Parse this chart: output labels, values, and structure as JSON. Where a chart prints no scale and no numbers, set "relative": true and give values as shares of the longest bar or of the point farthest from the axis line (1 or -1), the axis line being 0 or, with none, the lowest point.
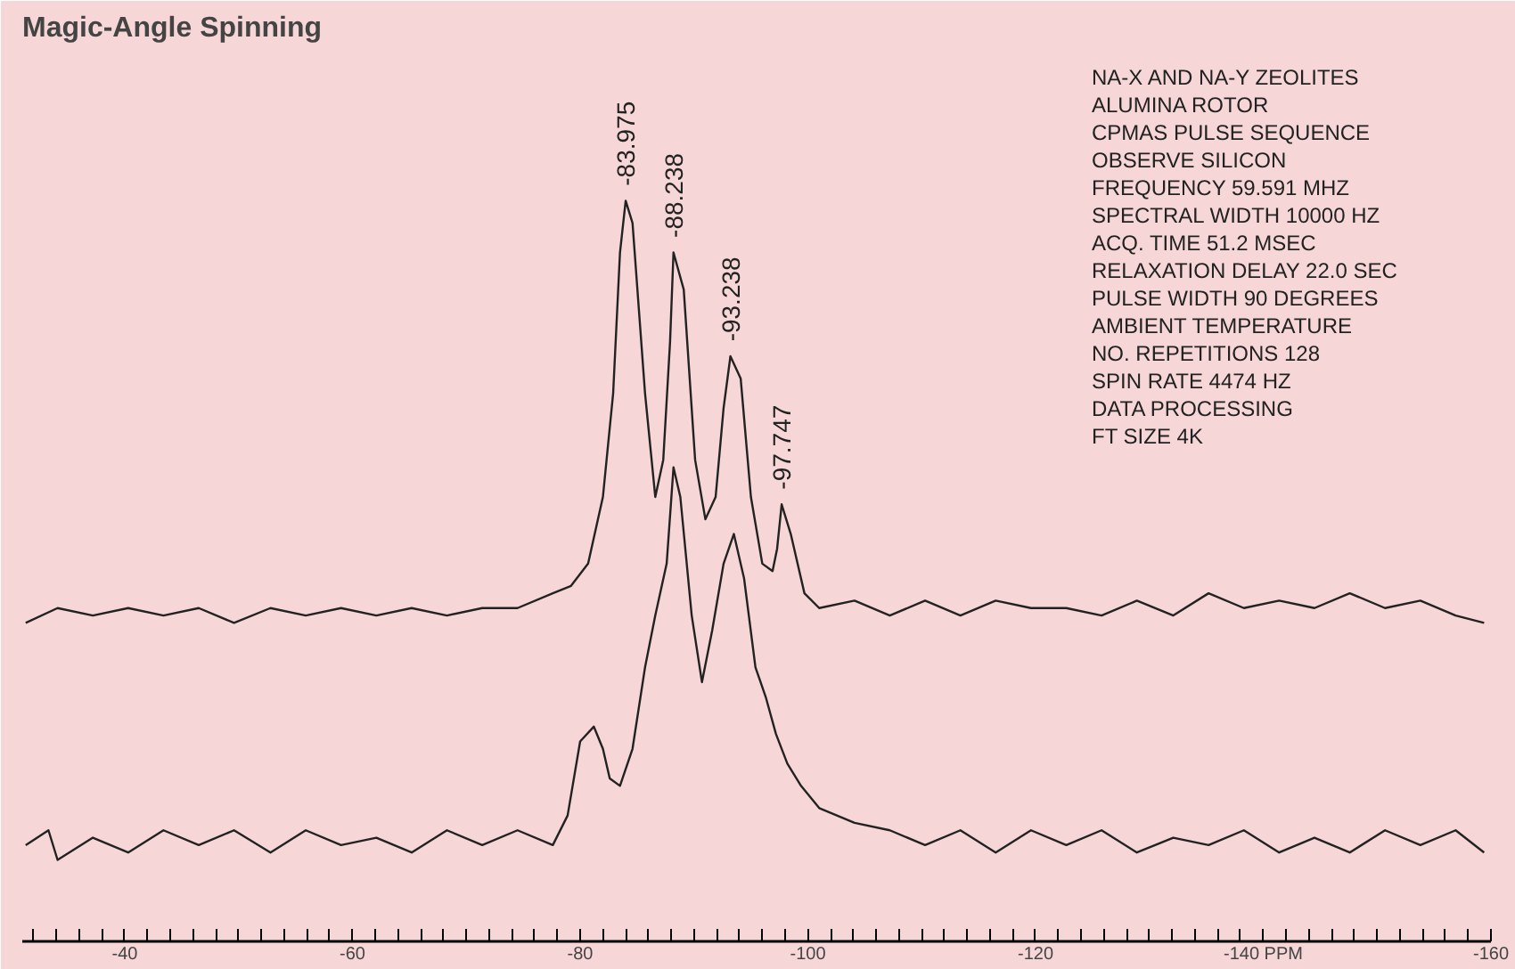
{
  "chart_data": {
    "type": "line",
    "title": "Magic-Angle Spinning",
    "relative": true,
    "tick_labels": "x",
    "xlim": [
      -31,
      -160
    ],
    "xticks": [
      {
        "value": -32,
        "label": null
      },
      {
        "value": -34,
        "label": null
      },
      {
        "value": -36,
        "label": null
      },
      {
        "value": -38,
        "label": null
      },
      -40,
      {
        "value": -42,
        "label": null
      },
      {
        "value": -44,
        "label": null
      },
      {
        "value": -46,
        "label": null
      },
      {
        "value": -48,
        "label": null
      },
      {
        "value": -50,
        "label": null
      },
      {
        "value": -52,
        "label": null
      },
      {
        "value": -54,
        "label": null
      },
      {
        "value": -56,
        "label": null
      },
      {
        "value": -58,
        "label": null
      },
      -60,
      {
        "value": -62,
        "label": null
      },
      {
        "value": -64,
        "label": null
      },
      {
        "value": -66,
        "label": null
      },
      {
        "value": -68,
        "label": null
      },
      {
        "value": -70,
        "label": null
      },
      {
        "value": -72,
        "label": null
      },
      {
        "value": -74,
        "label": null
      },
      {
        "value": -76,
        "label": null
      },
      {
        "value": -78,
        "label": null
      },
      -80,
      {
        "value": -82,
        "label": null
      },
      {
        "value": -84,
        "label": null
      },
      {
        "value": -86,
        "label": null
      },
      {
        "value": -88,
        "label": null
      },
      {
        "value": -90,
        "label": null
      },
      {
        "value": -92,
        "label": null
      },
      {
        "value": -94,
        "label": null
      },
      {
        "value": -96,
        "label": null
      },
      {
        "value": -98,
        "label": null
      },
      -100,
      {
        "value": -102,
        "label": null
      },
      {
        "value": -104,
        "label": null
      },
      {
        "value": -106,
        "label": null
      },
      {
        "value": -108,
        "label": null
      },
      {
        "value": -110,
        "label": null
      },
      {
        "value": -112,
        "label": null
      },
      {
        "value": -114,
        "label": null
      },
      {
        "value": -116,
        "label": null
      },
      {
        "value": -118,
        "label": null
      },
      -120,
      {
        "value": -122,
        "label": null
      },
      {
        "value": -124,
        "label": null
      },
      {
        "value": -126,
        "label": null
      },
      {
        "value": -128,
        "label": null
      },
      {
        "value": -130,
        "label": null
      },
      {
        "value": -132,
        "label": null
      },
      {
        "value": -134,
        "label": null
      },
      {
        "value": -136,
        "label": null
      },
      {
        "value": -138,
        "label": null
      },
      {
        "value": -140,
        "label": "-140 PPM"
      },
      {
        "value": -142,
        "label": null
      },
      {
        "value": -144,
        "label": null
      },
      {
        "value": -146,
        "label": null
      },
      {
        "value": -148,
        "label": null
      },
      {
        "value": -150,
        "label": null
      },
      {
        "value": -152,
        "label": null
      },
      {
        "value": -154,
        "label": null
      },
      {
        "value": -156,
        "label": null
      },
      {
        "value": -158,
        "label": null
      },
      -160
    ],
    "series": [
      {
        "color": "#222222",
        "x": [
          -31.3,
          -34.1,
          -37.2,
          -40.3,
          -43.4,
          -46.5,
          -49.6,
          -52.8,
          -55.9,
          -59.0,
          -62.1,
          -65.2,
          -68.3,
          -71.4,
          -74.5,
          -77.6,
          -79.2,
          -80.7,
          -82.0,
          -82.9,
          -83.5,
          -84.0,
          -84.6,
          -85.7,
          -86.6,
          -87.3,
          -87.9,
          -88.2,
          -89.1,
          -90.1,
          -91.0,
          -91.9,
          -92.6,
          -93.2,
          -94.1,
          -95.0,
          -96.0,
          -96.9,
          -97.3,
          -97.7,
          -98.5,
          -99.7,
          -101.0,
          -104.1,
          -107.2,
          -110.3,
          -113.4,
          -116.5,
          -119.6,
          -122.7,
          -125.8,
          -128.9,
          -132.1,
          -135.2,
          -138.3,
          -141.4,
          -144.5,
          -147.6,
          -150.7,
          -153.8,
          -156.9,
          -159.4
        ],
        "values": [
          0.43,
          0.45,
          0.44,
          0.45,
          0.44,
          0.45,
          0.43,
          0.45,
          0.44,
          0.45,
          0.44,
          0.45,
          0.44,
          0.45,
          0.45,
          0.47,
          0.48,
          0.51,
          0.6,
          0.74,
          0.93,
          1,
          0.97,
          0.74,
          0.6,
          0.65,
          0.81,
          0.93,
          0.88,
          0.65,
          0.57,
          0.6,
          0.72,
          0.79,
          0.76,
          0.6,
          0.51,
          0.5,
          0.53,
          0.59,
          0.55,
          0.47,
          0.45,
          0.46,
          0.44,
          0.46,
          0.44,
          0.46,
          0.45,
          0.45,
          0.44,
          0.46,
          0.44,
          0.47,
          0.45,
          0.46,
          0.45,
          0.47,
          0.45,
          0.46,
          0.44,
          0.43
        ]
      },
      {
        "color": "#222222",
        "x": [
          -31.3,
          -33.3,
          -34.1,
          -37.2,
          -40.3,
          -43.4,
          -46.5,
          -49.6,
          -52.8,
          -55.9,
          -59.0,
          -62.1,
          -65.2,
          -68.3,
          -71.4,
          -74.5,
          -77.6,
          -78.9,
          -80.0,
          -81.2,
          -82.0,
          -82.6,
          -83.5,
          -84.6,
          -85.7,
          -86.6,
          -87.6,
          -88.2,
          -88.8,
          -89.8,
          -90.7,
          -91.6,
          -92.6,
          -93.5,
          -94.4,
          -95.4,
          -96.3,
          -97.2,
          -98.2,
          -99.4,
          -101.0,
          -104.1,
          -107.2,
          -110.3,
          -113.4,
          -116.5,
          -119.6,
          -122.7,
          -125.8,
          -128.9,
          -132.1,
          -135.2,
          -138.3,
          -141.4,
          -144.5,
          -147.6,
          -150.7,
          -153.8,
          -156.9,
          -159.4
        ],
        "values": [
          0.13,
          0.15,
          0.11,
          0.14,
          0.12,
          0.15,
          0.13,
          0.15,
          0.12,
          0.15,
          0.13,
          0.14,
          0.12,
          0.15,
          0.13,
          0.15,
          0.13,
          0.17,
          0.27,
          0.29,
          0.26,
          0.22,
          0.21,
          0.26,
          0.37,
          0.44,
          0.51,
          0.64,
          0.6,
          0.44,
          0.35,
          0.42,
          0.51,
          0.55,
          0.49,
          0.37,
          0.33,
          0.28,
          0.24,
          0.21,
          0.18,
          0.16,
          0.15,
          0.13,
          0.15,
          0.12,
          0.15,
          0.13,
          0.15,
          0.12,
          0.14,
          0.13,
          0.15,
          0.12,
          0.14,
          0.12,
          0.15,
          0.13,
          0.15,
          0.12
        ]
      }
    ],
    "annotations": [
      {
        "text": "-83.975",
        "x": -84.0,
        "y": 1
      },
      {
        "text": "-88.238",
        "x": -88.2,
        "y": 0.93
      },
      {
        "text": "-93.238",
        "x": -93.2,
        "y": 0.79
      },
      {
        "text": "-97.747",
        "x": -97.7,
        "y": 0.59
      },
      "NA-X AND NA-Y ZEOLITES",
      "ALUMINA ROTOR",
      "CPMAS PULSE SEQUENCE",
      "OBSERVE SILICON",
      "FREQUENCY 59.591 MHZ",
      "SPECTRAL WIDTH 10000 HZ",
      "ACQ. TIME 51.2 MSEC",
      "RELAXATION DELAY 22.0 SEC",
      "PULSE WIDTH 90 DEGREES",
      "AMBIENT TEMPERATURE",
      "NO. REPETITIONS 128",
      "SPIN RATE 4474 HZ",
      "DATA PROCESSING",
      "FT SIZE 4K"
    ]
  }
}
